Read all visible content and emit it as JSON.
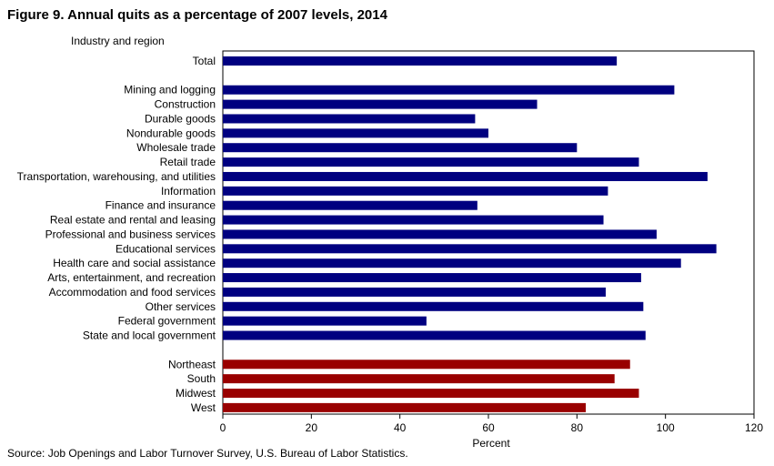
{
  "title": "Figure  9. Annual quits as a percentage of 2007 levels, 2014",
  "source": "Source: Job Openings and Labor Turnover Survey, U.S. Bureau of Labor Statistics.",
  "colors": {
    "industry": "#000080",
    "region": "#990000"
  },
  "chart_data": {
    "type": "bar",
    "orientation": "horizontal",
    "title": "Figure  9. Annual quits as a percentage of 2007 levels, 2014",
    "ylabel": "Industry and region",
    "xlabel": "Percent",
    "xlim": [
      0,
      120
    ],
    "xticks": [
      0,
      20,
      40,
      60,
      80,
      100,
      120
    ],
    "grid": false,
    "legend": "none",
    "groups": [
      {
        "name": "total",
        "color": "#000080",
        "categories": [
          "Total"
        ],
        "values": [
          89
        ]
      },
      {
        "name": "industry",
        "color": "#000080",
        "categories": [
          "Mining and logging",
          "Construction",
          "Durable goods",
          "Nondurable goods",
          "Wholesale trade",
          "Retail trade",
          "Transportation, warehousing, and utilities",
          "Information",
          "Finance and insurance",
          "Real estate and rental and leasing",
          "Professional and business services",
          "Educational services",
          "Health care and social assistance",
          "Arts, entertainment, and recreation",
          "Accommodation and food services",
          "Other services",
          "Federal government",
          "State and local government"
        ],
        "values": [
          102,
          71,
          57,
          60,
          80,
          94,
          109.5,
          87,
          57.5,
          86,
          98,
          111.5,
          103.5,
          94.5,
          86.5,
          95,
          46,
          95.5
        ]
      },
      {
        "name": "region",
        "color": "#990000",
        "categories": [
          "Northeast",
          "South",
          "Midwest",
          "West"
        ],
        "values": [
          92,
          88.5,
          94,
          82
        ]
      }
    ]
  }
}
